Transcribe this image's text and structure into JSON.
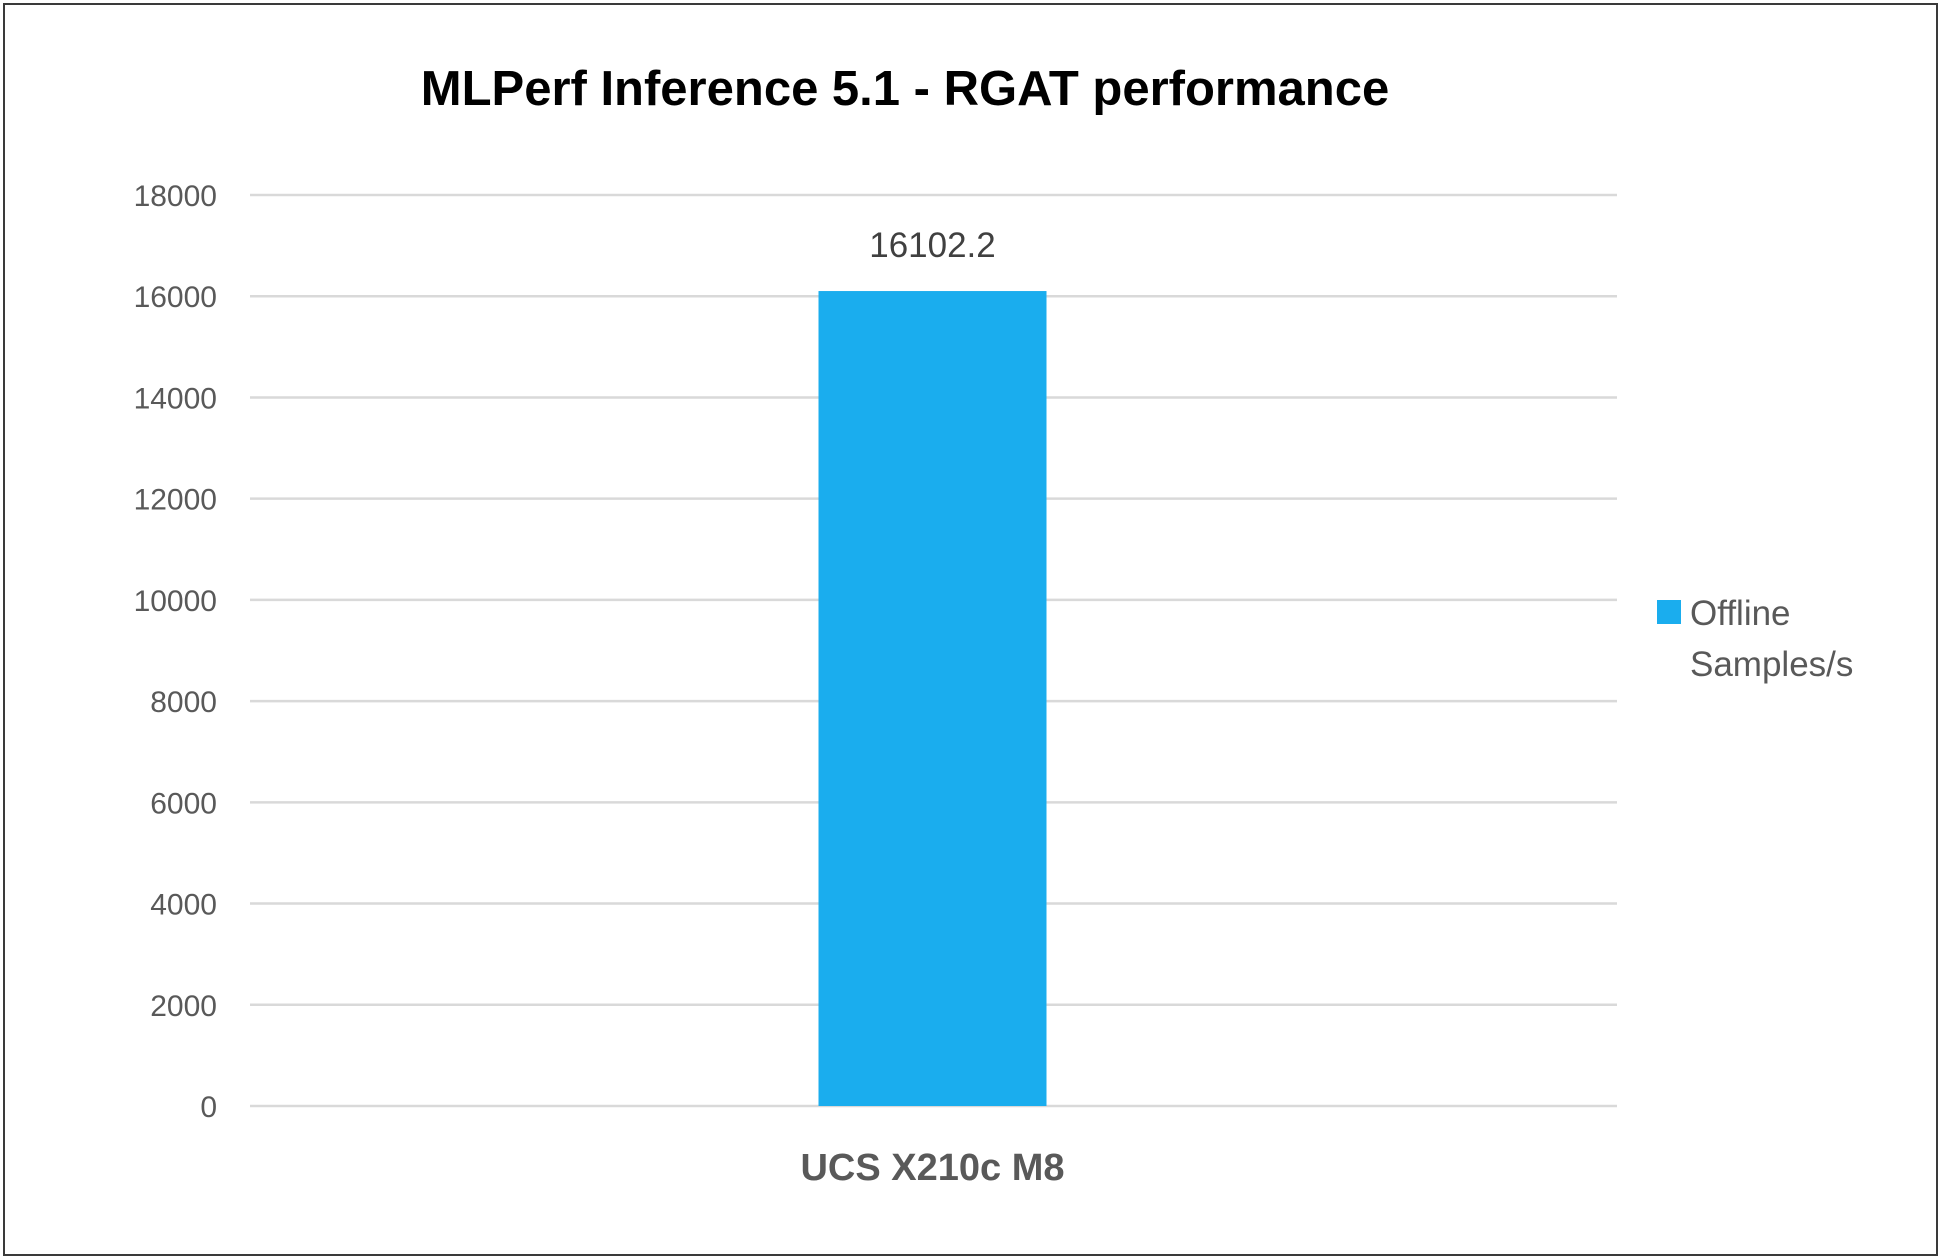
{
  "chart_data": {
    "type": "bar",
    "title": "MLPerf Inference 5.1 - RGAT performance",
    "categories": [
      "UCS X210c M8"
    ],
    "series": [
      {
        "name": "Offline Samples/s",
        "values": [
          16102.2
        ],
        "color": "#1aadee",
        "value_labels": [
          "16102.2"
        ]
      }
    ],
    "ylim": [
      0,
      18000
    ],
    "y_ticks": [
      0,
      2000,
      4000,
      6000,
      8000,
      10000,
      12000,
      14000,
      16000,
      18000
    ],
    "y_tick_labels": [
      "0",
      "2000",
      "4000",
      "6000",
      "8000",
      "10000",
      "12000",
      "14000",
      "16000",
      "18000"
    ],
    "grid": true,
    "legend": {
      "position": "right",
      "lines": [
        "Offline",
        "Samples/s"
      ]
    },
    "xlabel": "",
    "ylabel": ""
  }
}
